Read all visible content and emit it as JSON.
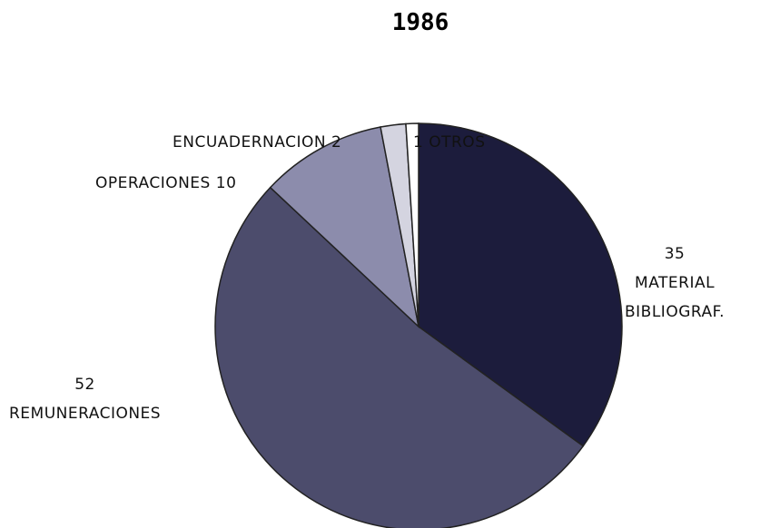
{
  "chart_data": {
    "type": "pie",
    "title": "1986",
    "categories": [
      "MATERIAL\nBIBLIOGRAF.",
      "REMUNERACIONES",
      "OPERACIONES",
      "ENCUADERNACION",
      "OTROS"
    ],
    "values": [
      35,
      52,
      10,
      2,
      1
    ],
    "colors": [
      "#1c1c3c",
      "#4c4c6c",
      "#8c8cac",
      "#d4d4e0",
      "#ffffff"
    ]
  }
}
